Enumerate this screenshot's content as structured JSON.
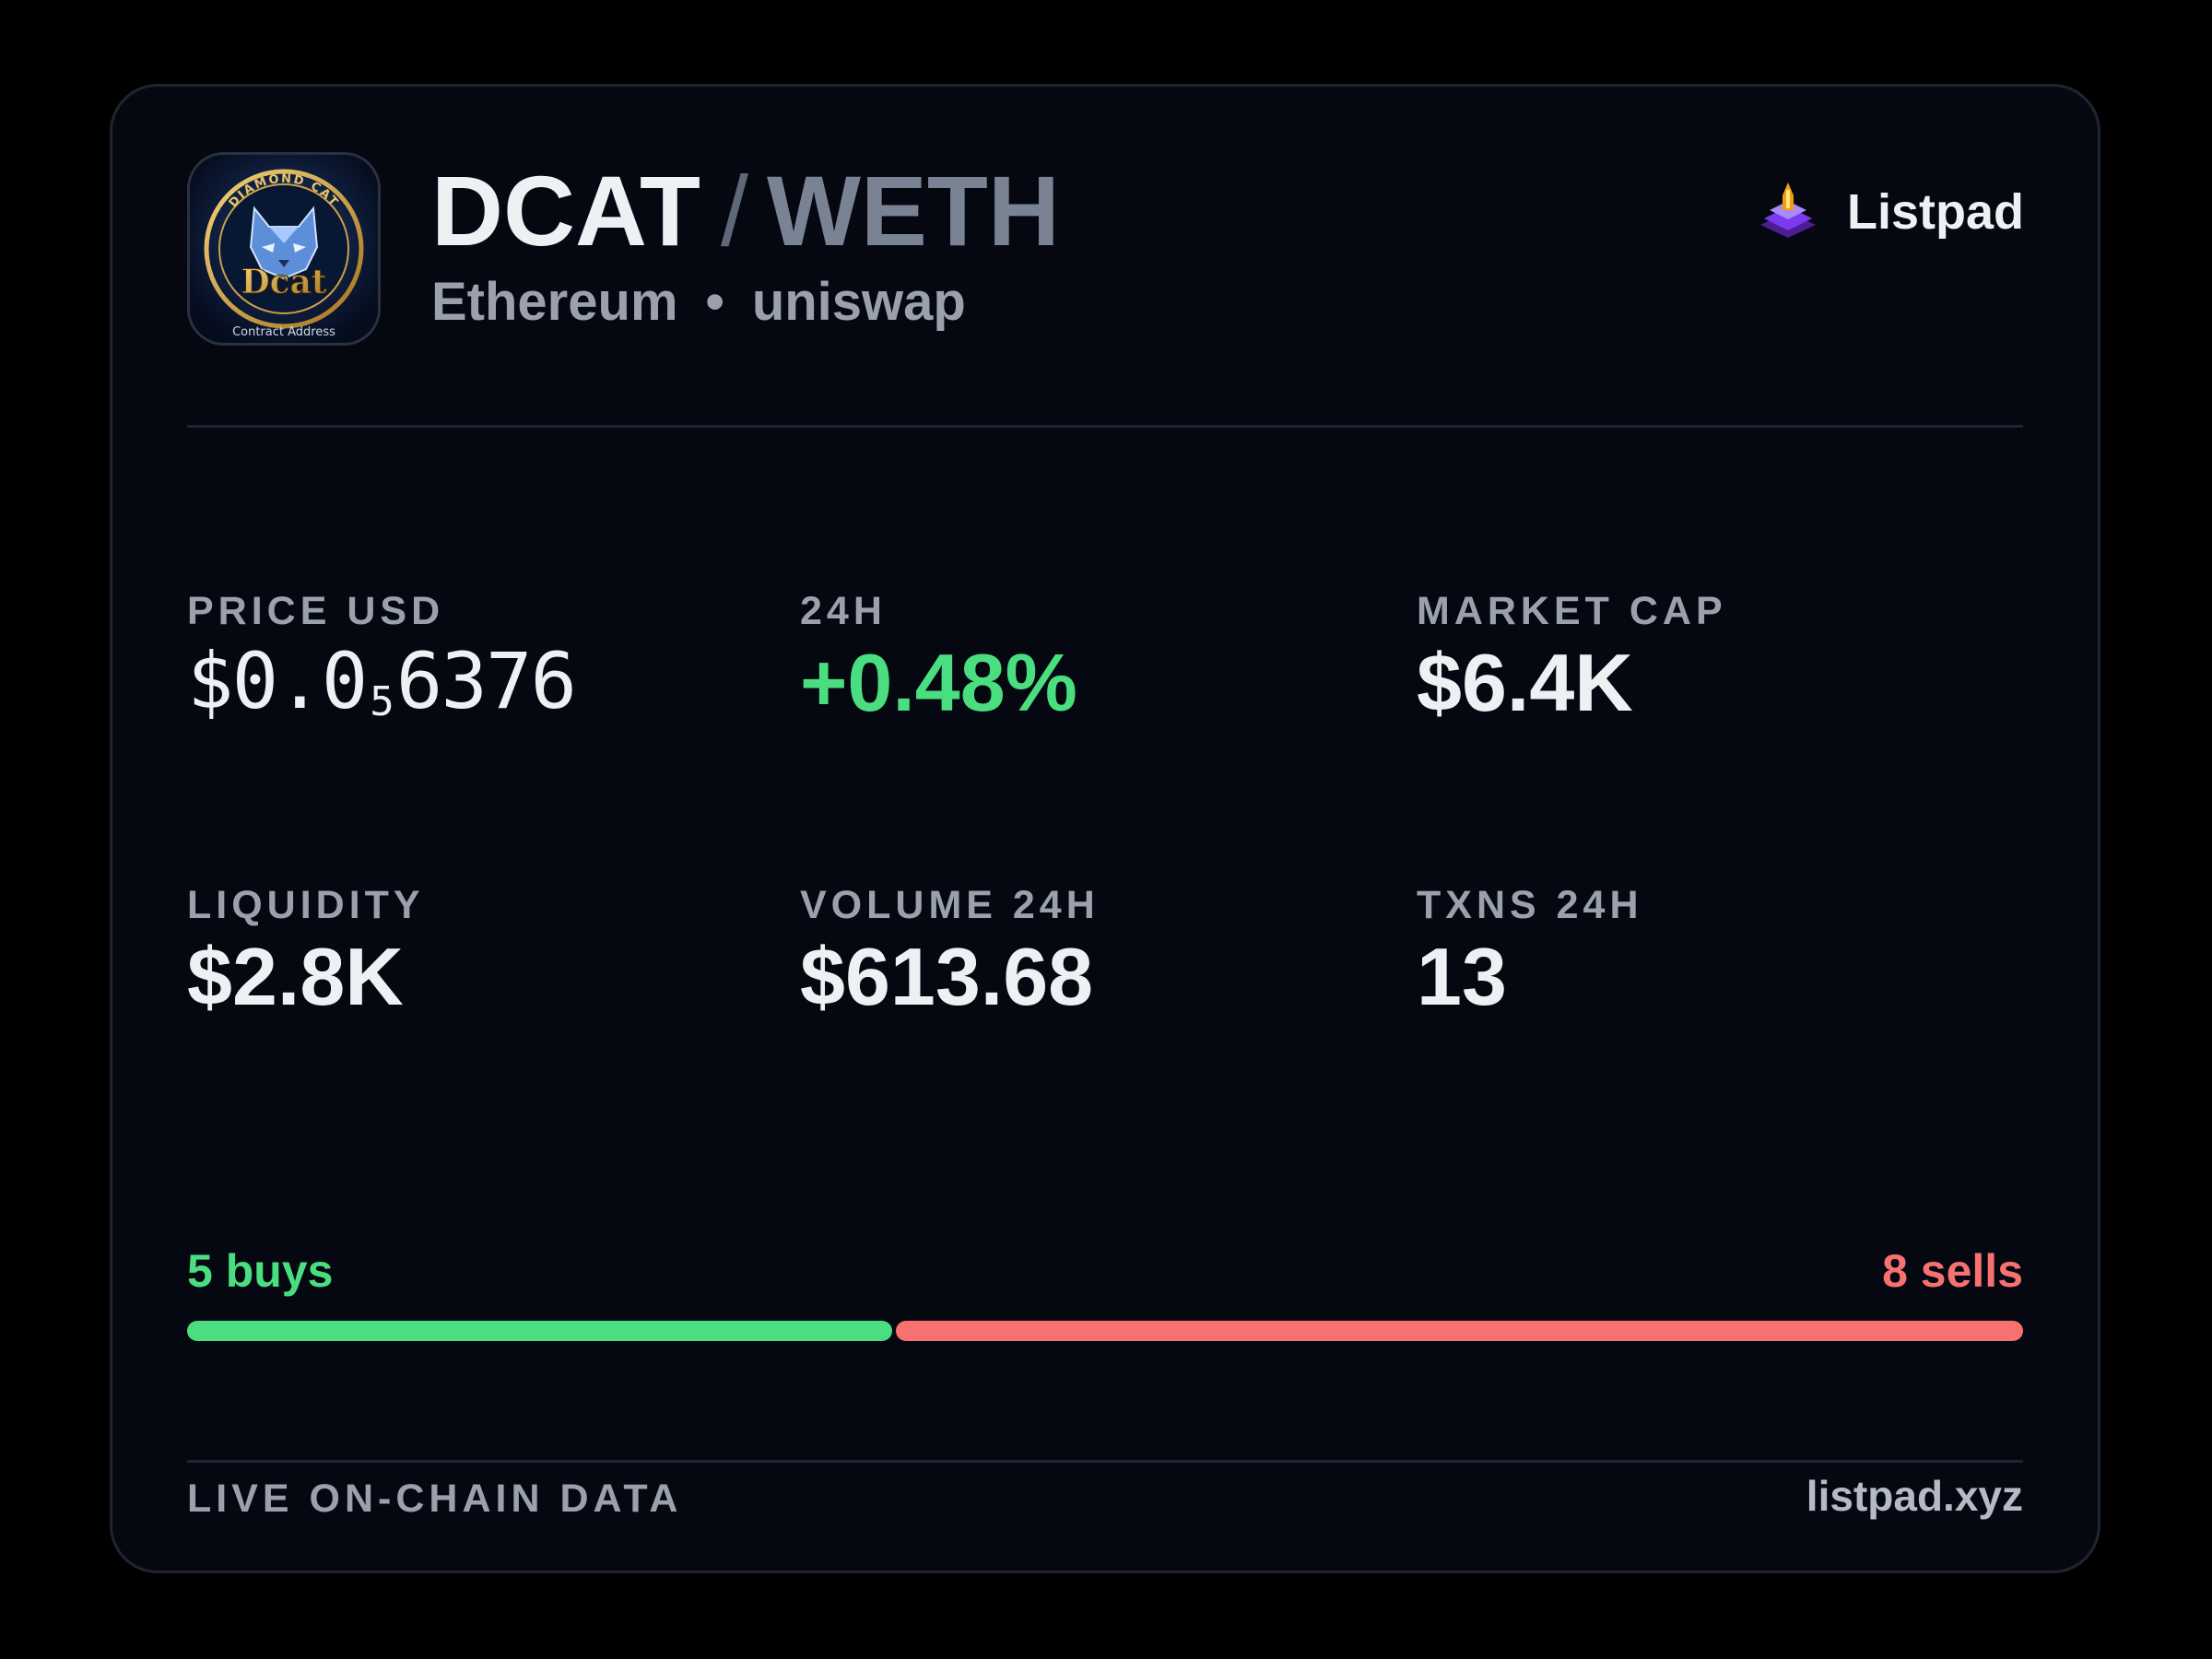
{
  "pair": {
    "base": "DCAT",
    "separator": "/",
    "quote": "WETH"
  },
  "logo": {
    "icon": "diamond-cat-token-logo",
    "arc_text": "DIAMOND CAT",
    "wordmark": "Dcat",
    "caption": "Contract Address"
  },
  "chain": "Ethereum",
  "dot": "•",
  "dex": "uniswap",
  "brand": {
    "name": "Listpad",
    "icon": "listpad-rocket-icon"
  },
  "stats": {
    "price": {
      "label": "PRICE USD",
      "prefix": "$0.0",
      "zeros": "5",
      "digits": "6376"
    },
    "change": {
      "label": "24H",
      "value": "+0.48%"
    },
    "market_cap": {
      "label": "MARKET CAP",
      "value": "$6.4K"
    },
    "liquidity": {
      "label": "LIQUIDITY",
      "value": "$2.8K"
    },
    "volume": {
      "label": "VOLUME 24H",
      "value": "$613.68"
    },
    "txns": {
      "label": "TXNS 24H",
      "value": "13"
    }
  },
  "trades": {
    "buys_label": "5 buys",
    "sells_label": "8 sells",
    "buys": 5,
    "sells": 8
  },
  "footer": {
    "left": "LIVE ON-CHAIN DATA",
    "right": "listpad.xyz"
  },
  "colors": {
    "background": "#000000",
    "card": "#050811",
    "positive": "#4ade80",
    "negative": "#f87171",
    "brand_purple": "#7c3aed"
  }
}
